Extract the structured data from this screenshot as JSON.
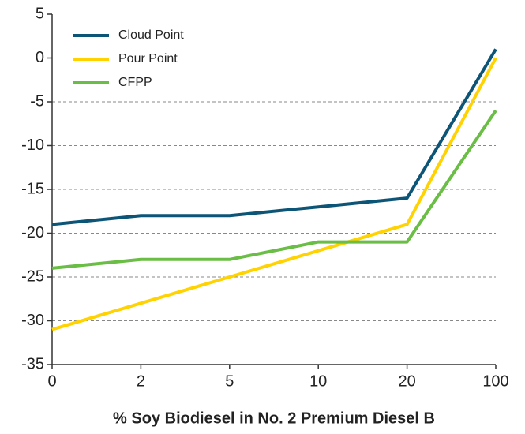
{
  "chart_data": {
    "type": "line",
    "x_label": "% Soy Biodiesel in No. 2 Premium Diesel B",
    "categories": [
      "0",
      "2",
      "5",
      "10",
      "20",
      "100"
    ],
    "series": [
      {
        "name": "Cloud Point",
        "color": "#0d5577",
        "values": [
          -19,
          -18,
          -18,
          -17,
          -16,
          1
        ]
      },
      {
        "name": "Pour Point",
        "color": "#ffd200",
        "values": [
          -31,
          -28,
          -25,
          -22,
          -19,
          0
        ]
      },
      {
        "name": "CFPP",
        "color": "#6abd45",
        "values": [
          -24,
          -23,
          -23,
          -21,
          -21,
          -6
        ]
      }
    ],
    "ylim": [
      -35,
      5
    ],
    "yticks": [
      5,
      0,
      -5,
      -10,
      -15,
      -20,
      -25,
      -30,
      -35
    ],
    "grid": true,
    "legend": "upper left"
  }
}
